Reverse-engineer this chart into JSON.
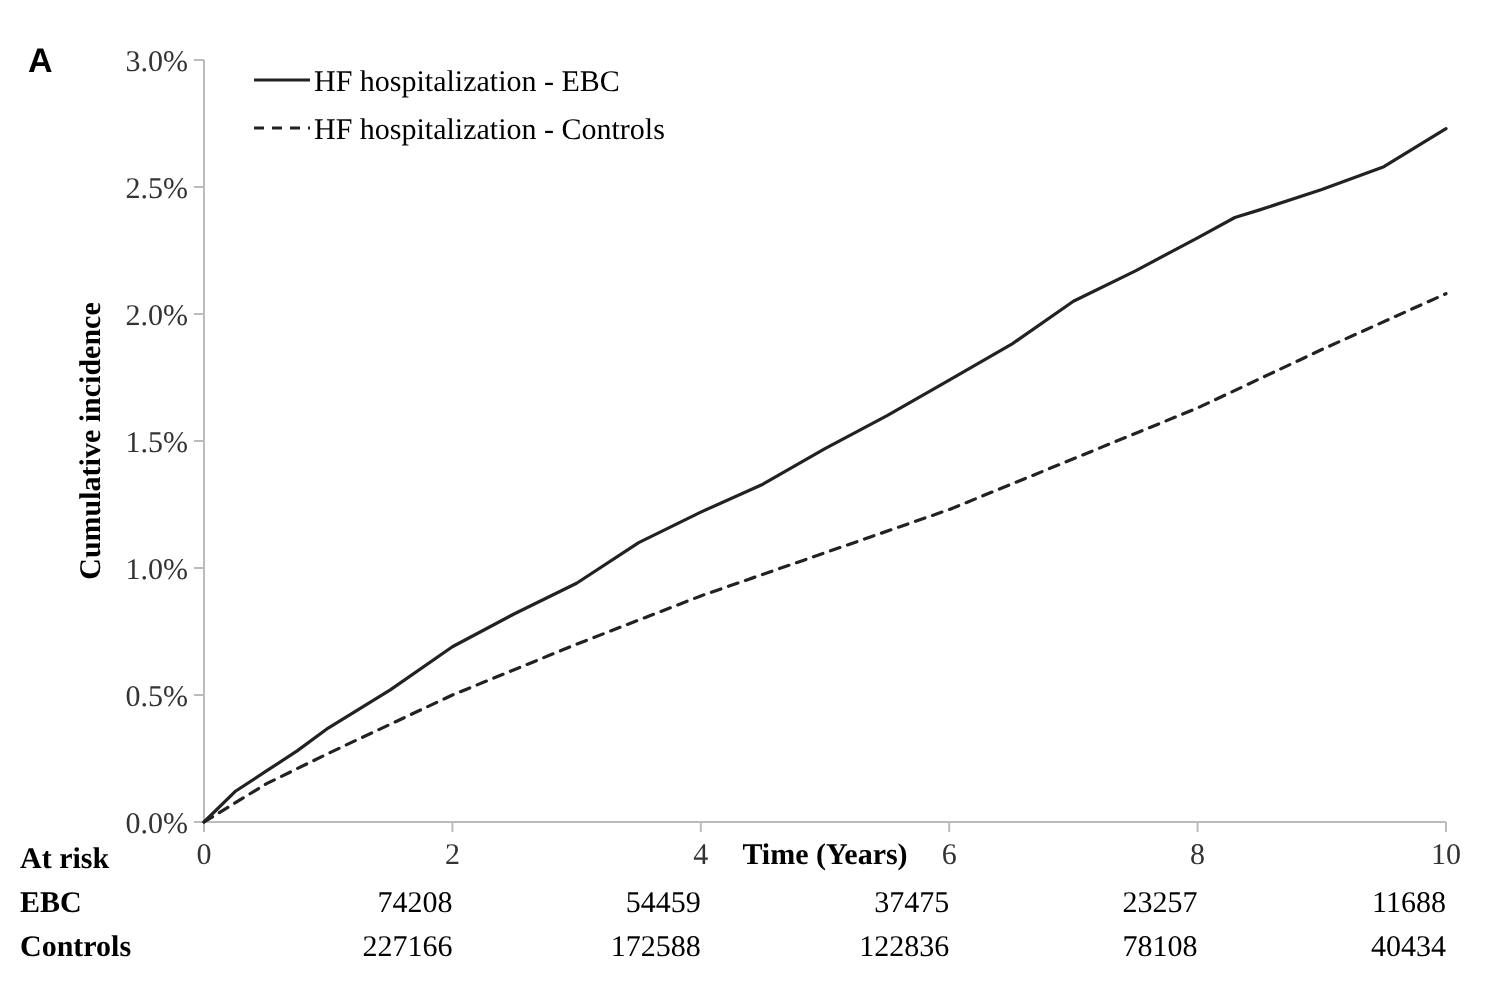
{
  "chart_data": {
    "type": "line",
    "title": "A",
    "xlabel": "Time (Years)",
    "ylabel": "Cumulative incidence",
    "xlim": [
      0,
      10
    ],
    "xticks": [
      0,
      2,
      4,
      6,
      8,
      10
    ],
    "ylim": [
      0,
      3
    ],
    "yticks": [
      {
        "value": 0,
        "label": "0.0%"
      },
      {
        "value": 0.5,
        "label": "0.5%"
      },
      {
        "value": 1,
        "label": "1.0%"
      },
      {
        "value": 1.5,
        "label": "1.5%"
      },
      {
        "value": 2,
        "label": "2.0%"
      },
      {
        "value": 2.5,
        "label": "2.5%"
      },
      {
        "value": 3,
        "label": "3.0%"
      }
    ],
    "grid": false,
    "legend": "top left",
    "marker": "none",
    "series": [
      {
        "name": "HF hospitalization - EBC",
        "color": "#222222",
        "line_style": "solid",
        "x": [
          0,
          0.25,
          0.5,
          0.75,
          1,
          1.5,
          2,
          2.5,
          3,
          3.5,
          4,
          4.5,
          5,
          5.5,
          6,
          6.5,
          7,
          7.5,
          8,
          8.3,
          8.5,
          9,
          9.5,
          10
        ],
        "values": [
          0,
          0.12,
          0.2,
          0.28,
          0.37,
          0.52,
          0.69,
          0.82,
          0.94,
          1.1,
          1.22,
          1.33,
          1.47,
          1.6,
          1.74,
          1.88,
          2.05,
          2.17,
          2.3,
          2.38,
          2.41,
          2.49,
          2.58,
          2.73
        ]
      },
      {
        "name": "HF hospitalization - Controls",
        "color": "#222222",
        "line_style": "dashed",
        "x": [
          0,
          0.5,
          1,
          2,
          3,
          4,
          5,
          6,
          7,
          8,
          9,
          10
        ],
        "values": [
          0,
          0.15,
          0.27,
          0.5,
          0.7,
          0.89,
          1.06,
          1.23,
          1.43,
          1.63,
          1.86,
          2.08
        ]
      }
    ],
    "annotations": [
      "At risk",
      "EBC",
      "74208",
      "54459",
      "37475",
      "23257",
      "11688",
      "Controls",
      "227166",
      "172588",
      "122836",
      "78108",
      "40434"
    ]
  }
}
